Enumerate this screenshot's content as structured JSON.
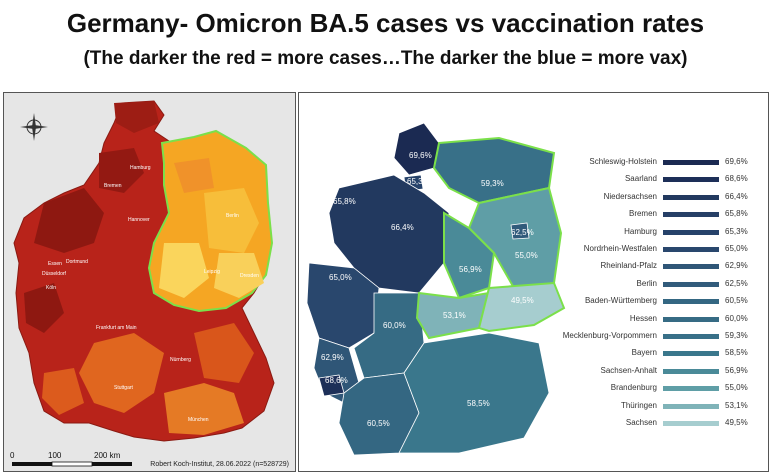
{
  "title": "Germany- Omicron BA.5 cases vs vaccination rates",
  "subtitle": "(The darker the red = more cases…The darker the blue = more vax)",
  "left_map": {
    "credit": "Robert Koch-Institut, 28.06.2022 (n=528729)",
    "scale": {
      "zero": "0",
      "mid": "100",
      "end": "200 km"
    },
    "cities": [
      "Hamburg",
      "Bremen",
      "Hannover",
      "Berlin",
      "Essen",
      "Dortmund",
      "Düsseldorf",
      "Köln",
      "Frankfurt am Main",
      "Nürnberg",
      "Stuttgart",
      "München",
      "Leipzig",
      "Dresden"
    ]
  },
  "right_map": {
    "states": [
      {
        "name": "Schleswig-Holstein",
        "value": "69,6%",
        "color": "#1b2a52"
      },
      {
        "name": "Saarland",
        "value": "68,6%",
        "color": "#1d2f58"
      },
      {
        "name": "Niedersachsen",
        "value": "66,4%",
        "color": "#22395f"
      },
      {
        "name": "Bremen",
        "value": "65,8%",
        "color": "#263f66"
      },
      {
        "name": "Hamburg",
        "value": "65,3%",
        "color": "#26426a"
      },
      {
        "name": "Nordrhein-Westfalen",
        "value": "65,0%",
        "color": "#29476d"
      },
      {
        "name": "Rheinland-Pfalz",
        "value": "62,9%",
        "color": "#2f5677"
      },
      {
        "name": "Berlin",
        "value": "62,5%",
        "color": "#315b7b"
      },
      {
        "name": "Baden-Württemberg",
        "value": "60,5%",
        "color": "#346782"
      },
      {
        "name": "Hessen",
        "value": "60,0%",
        "color": "#366b84"
      },
      {
        "name": "Mecklenburg-Vorpommern",
        "value": "59,3%",
        "color": "#387088"
      },
      {
        "name": "Bayern",
        "value": "58,5%",
        "color": "#3a778c"
      },
      {
        "name": "Sachsen-Anhalt",
        "value": "56,9%",
        "color": "#4a8a98"
      },
      {
        "name": "Brandenburg",
        "value": "55,0%",
        "color": "#5f9ea6"
      },
      {
        "name": "Thüringen",
        "value": "53,1%",
        "color": "#7fb3b8"
      },
      {
        "name": "Sachsen",
        "value": "49,5%",
        "color": "#a6cdcf"
      }
    ],
    "map_labels": [
      "69,6%",
      "65,3%",
      "65,8%",
      "66,4%",
      "65,0%",
      "62,9%",
      "68,6%",
      "60,0%",
      "60,5%",
      "58,5%",
      "59,3%",
      "62,5%",
      "56,9%",
      "55,0%",
      "53,1%",
      "49,5%"
    ]
  }
}
